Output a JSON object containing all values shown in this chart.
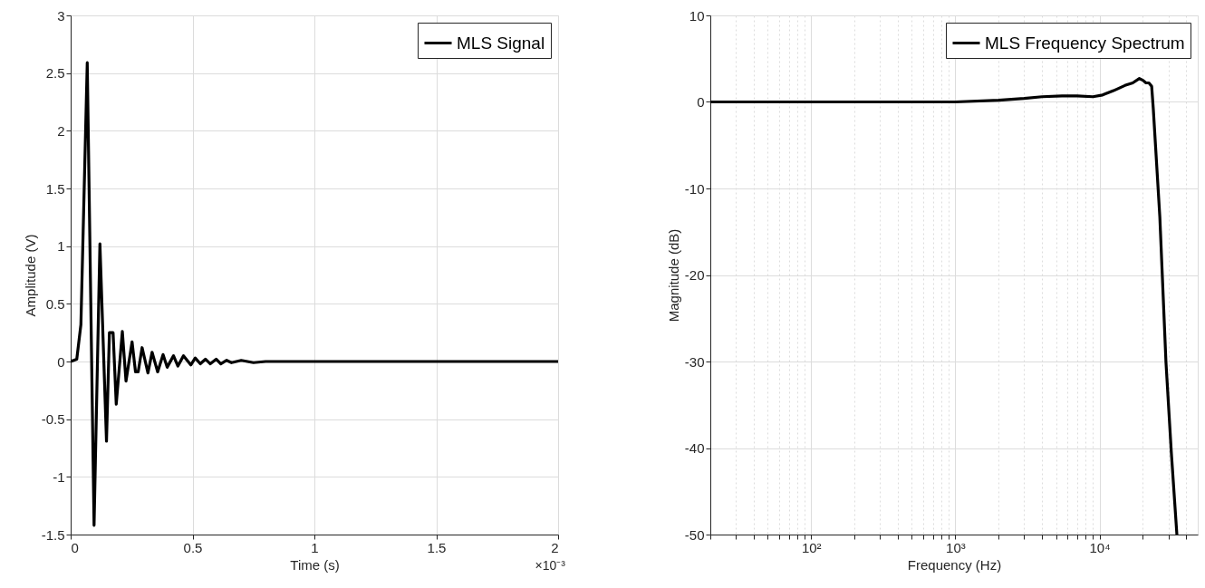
{
  "chart_data": [
    {
      "type": "line",
      "xlabel": "Time (s)",
      "ylabel": "Amplitude (V)",
      "xlim": [
        0,
        2
      ],
      "ylim": [
        -1.5,
        3
      ],
      "xticks": [
        0,
        0.5,
        1,
        1.5,
        2
      ],
      "yticks": [
        -1.5,
        -1,
        -0.5,
        0,
        0.5,
        1,
        1.5,
        2,
        2.5,
        3
      ],
      "grid": true,
      "legend": "top right",
      "line_style": "solid",
      "annotations": [
        "×10⁻³"
      ],
      "x": [
        0,
        0.025,
        0.042,
        0.068,
        0.096,
        0.12,
        0.147,
        0.159,
        0.174,
        0.187,
        0.212,
        0.227,
        0.252,
        0.266,
        0.277,
        0.293,
        0.317,
        0.334,
        0.357,
        0.379,
        0.396,
        0.422,
        0.44,
        0.463,
        0.493,
        0.511,
        0.532,
        0.553,
        0.573,
        0.597,
        0.616,
        0.64,
        0.66,
        0.7,
        0.75,
        0.8,
        0.85,
        0.9,
        1,
        1.5,
        2
      ],
      "series": [
        {
          "name": "MLS Signal",
          "color": "#000000",
          "values": [
            0,
            0.02,
            0.32,
            2.59,
            -1.42,
            1.02,
            -0.69,
            0.25,
            0.25,
            -0.37,
            0.26,
            -0.17,
            0.17,
            -0.09,
            -0.09,
            0.12,
            -0.1,
            0.08,
            -0.09,
            0.06,
            -0.05,
            0.05,
            -0.04,
            0.05,
            -0.03,
            0.03,
            -0.02,
            0.02,
            -0.02,
            0.02,
            -0.02,
            0.01,
            -0.01,
            0.01,
            -0.01,
            0,
            0,
            0,
            0,
            0,
            0
          ]
        }
      ]
    },
    {
      "type": "line",
      "xlabel": "Frequency (Hz)",
      "ylabel": "Magnitude (dB)",
      "log": "x",
      "xlim": [
        20,
        48000
      ],
      "ylim": [
        -50,
        10
      ],
      "xticks": [
        {
          "value": 20,
          "label": null
        },
        {
          "value": 30,
          "label": null
        },
        {
          "value": 40,
          "label": null
        },
        {
          "value": 50,
          "label": null
        },
        {
          "value": 60,
          "label": null
        },
        {
          "value": 70,
          "label": null
        },
        {
          "value": 80,
          "label": null
        },
        {
          "value": 90,
          "label": null
        },
        {
          "value": 100,
          "label": "10²"
        },
        {
          "value": 200,
          "label": null
        },
        {
          "value": 300,
          "label": null
        },
        {
          "value": 400,
          "label": null
        },
        {
          "value": 500,
          "label": null
        },
        {
          "value": 600,
          "label": null
        },
        {
          "value": 700,
          "label": null
        },
        {
          "value": 800,
          "label": null
        },
        {
          "value": 900,
          "label": null
        },
        {
          "value": 1000,
          "label": "10³"
        },
        {
          "value": 2000,
          "label": null
        },
        {
          "value": 3000,
          "label": null
        },
        {
          "value": 4000,
          "label": null
        },
        {
          "value": 5000,
          "label": null
        },
        {
          "value": 6000,
          "label": null
        },
        {
          "value": 7000,
          "label": null
        },
        {
          "value": 8000,
          "label": null
        },
        {
          "value": 9000,
          "label": null
        },
        {
          "value": 10000,
          "label": "10⁴"
        },
        {
          "value": 20000,
          "label": null
        },
        {
          "value": 30000,
          "label": null
        },
        {
          "value": 40000,
          "label": null
        }
      ],
      "yticks": [
        -50,
        -40,
        -30,
        -20,
        -10,
        0,
        10
      ],
      "grid": true,
      "legend": "top right",
      "line_style": "solid",
      "x": [
        20,
        100,
        300,
        1000,
        2000,
        3000,
        4000,
        5500,
        7000,
        9000,
        10500,
        12500,
        15000,
        17000,
        18900,
        20000,
        21000,
        22000,
        23000,
        23600,
        26200,
        28900,
        31500,
        34400
      ],
      "series": [
        {
          "name": "MLS Frequency Spectrum",
          "color": "#000000",
          "values": [
            0,
            0,
            0,
            0,
            0.2,
            0.4,
            0.6,
            0.7,
            0.7,
            0.6,
            0.8,
            1.3,
            1.9,
            2.2,
            2.7,
            2.5,
            2.2,
            2.2,
            1.8,
            -0.8,
            -13.3,
            -30.1,
            -40.6,
            -50
          ]
        }
      ]
    }
  ]
}
